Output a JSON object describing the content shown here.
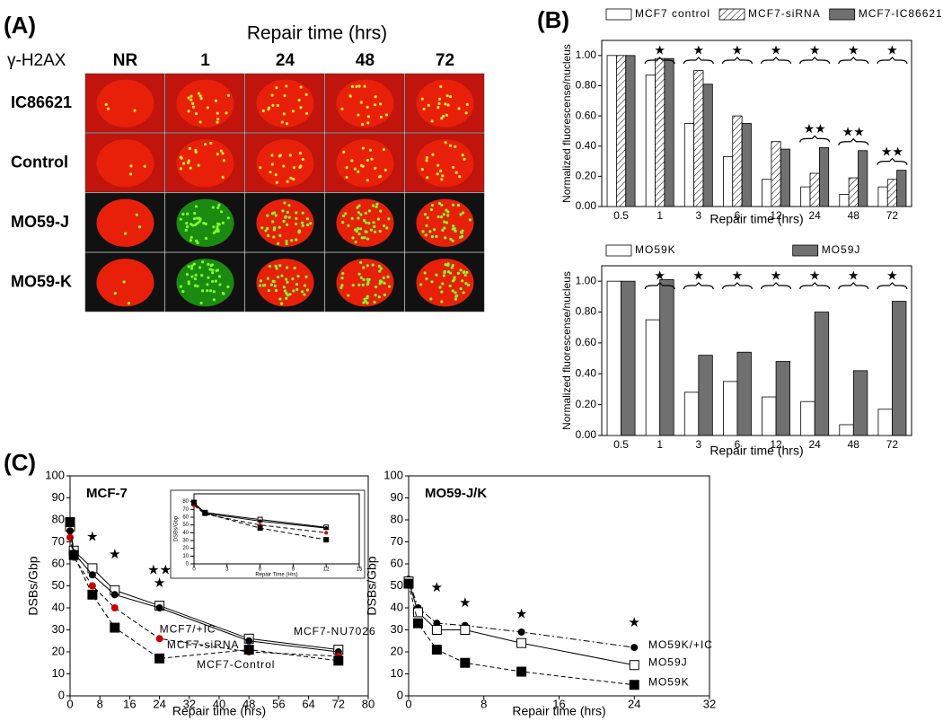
{
  "panel_a": {
    "label": "(A)",
    "title": "Repair time (hrs)",
    "row_header": "γ-H2AX",
    "columns": [
      "NR",
      "1",
      "24",
      "48",
      "72"
    ],
    "rows": [
      "IC86621",
      "Control",
      "MO59-J",
      "MO59-K"
    ]
  },
  "chart_data": [
    {
      "type": "bar",
      "panel_label": "(B)",
      "x_label": "Repair time (hrs)",
      "y_label": "Normalized fluorescense/nucleus",
      "categories": [
        "0.5",
        "1",
        "3",
        "6",
        "12",
        "24",
        "48",
        "72"
      ],
      "series": [
        {
          "name": "MCF7 control",
          "color": "#ffffff",
          "values": [
            1.0,
            0.87,
            0.55,
            0.33,
            0.18,
            0.13,
            0.08,
            0.13
          ]
        },
        {
          "name": "MCF7-siRNA",
          "color": "#ffffff",
          "fill_style": "hatch",
          "values": [
            1.0,
            0.98,
            0.9,
            0.6,
            0.43,
            0.22,
            0.19,
            0.18
          ]
        },
        {
          "name": "MCF7-IC86621",
          "color": "#707070",
          "values": [
            1.0,
            0.98,
            0.81,
            0.55,
            0.38,
            0.39,
            0.37,
            0.24
          ]
        }
      ],
      "ylim": [
        0,
        1.1
      ],
      "yticks": [
        {
          "value": 0,
          "label": "0.00"
        },
        {
          "value": 0.2,
          "label": "0.20"
        },
        {
          "value": 0.4,
          "label": "0.40"
        },
        {
          "value": 0.6,
          "label": "0.60"
        },
        {
          "value": 0.8,
          "label": "0.80"
        },
        {
          "value": 1.0,
          "label": "1.00"
        }
      ],
      "significance": [
        null,
        "★",
        "★",
        "★",
        "★",
        "★",
        "★",
        "★"
      ],
      "significance_low": [
        null,
        null,
        null,
        null,
        null,
        "★★",
        "★★",
        "★★"
      ]
    },
    {
      "type": "bar",
      "x_label": "Repair time (hrs)",
      "y_label": "Normalized fluorescense/nucleus",
      "categories": [
        "0.5",
        "1",
        "3",
        "6",
        "12",
        "24",
        "48",
        "72"
      ],
      "series": [
        {
          "name": "MO59K",
          "color": "#ffffff",
          "values": [
            1.0,
            0.75,
            0.28,
            0.35,
            0.25,
            0.22,
            0.07,
            0.17
          ]
        },
        {
          "name": "MO59J",
          "color": "#707070",
          "values": [
            1.0,
            1.01,
            0.52,
            0.54,
            0.48,
            0.8,
            0.42,
            0.87
          ]
        }
      ],
      "ylim": [
        0,
        1.1
      ],
      "yticks": [
        {
          "value": 0,
          "label": "0.00"
        },
        {
          "value": 0.2,
          "label": "0.20"
        },
        {
          "value": 0.4,
          "label": "0.40"
        },
        {
          "value": 0.6,
          "label": "0.60"
        },
        {
          "value": 0.8,
          "label": "0.80"
        },
        {
          "value": 1.0,
          "label": "1.00"
        }
      ],
      "significance": [
        null,
        "★",
        "★",
        "★",
        "★",
        "★",
        "★",
        "★"
      ]
    },
    {
      "type": "line",
      "panel_label": "(C)",
      "title": "MCF-7",
      "x_label": "Repair time (hrs)",
      "y_label": "DSBs/Gbp",
      "x": [
        0,
        1,
        6,
        12,
        24,
        48,
        72
      ],
      "series": [
        {
          "name": "MCF7-NU7026",
          "color": "#000000",
          "dash": "solid",
          "marker": "square-open",
          "values": [
            77,
            66,
            58,
            48,
            41,
            26,
            21
          ]
        },
        {
          "name": "MCF7/+IC",
          "color": "#000000",
          "dash": "solid",
          "marker": "circle",
          "values": [
            75,
            65,
            55,
            46,
            40,
            25,
            20
          ]
        },
        {
          "name": "MCF7-siRNA",
          "color": "#cc0000",
          "dash": "dashed",
          "marker": "circle",
          "values": [
            72,
            63,
            50,
            40,
            26,
            20,
            18
          ]
        },
        {
          "name": "MCF7-Control",
          "color": "#000000",
          "dash": "dashed",
          "marker": "square",
          "values": [
            79,
            64,
            46,
            31,
            17,
            21,
            16
          ]
        }
      ],
      "xlim": [
        0,
        80
      ],
      "xticks": [
        0,
        8,
        16,
        24,
        32,
        40,
        48,
        56,
        64,
        72,
        80
      ],
      "ylim": [
        0,
        100
      ],
      "yticks": [
        0,
        10,
        20,
        30,
        40,
        50,
        60,
        70,
        80,
        90,
        100
      ],
      "annotations": [
        {
          "text": "★",
          "x": 6,
          "y": 72
        },
        {
          "text": "★",
          "x": 12,
          "y": 64
        },
        {
          "text": "★★",
          "x": 24,
          "y": 57
        },
        {
          "text": "★",
          "x": 24,
          "y": 51
        }
      ]
    },
    {
      "type": "line",
      "x_label": "Repair Time (Hrs)",
      "y_label": "DSBs/Gbp",
      "x": [
        0,
        1,
        6,
        12
      ],
      "series": [
        {
          "name": "MCF7-NU7026",
          "color": "#000000",
          "dash": "solid",
          "marker": "square-open",
          "values": [
            78,
            66,
            57,
            47
          ]
        },
        {
          "name": "MCF7/+IC",
          "color": "#000000",
          "dash": "solid",
          "marker": "circle",
          "values": [
            77,
            65,
            55,
            46
          ]
        },
        {
          "name": "MCF7-siRNA",
          "color": "#cc0000",
          "dash": "dashed",
          "marker": "circle",
          "values": [
            75,
            64,
            50,
            40
          ]
        },
        {
          "name": "MCF7-Control",
          "color": "#000000",
          "dash": "dashed",
          "marker": "square",
          "values": [
            79,
            65,
            46,
            31
          ]
        }
      ],
      "xlim": [
        0,
        15
      ],
      "xticks": [
        0,
        3,
        6,
        9,
        12,
        15
      ],
      "ylim": [
        0,
        90
      ],
      "yticks": [
        0,
        10,
        20,
        30,
        40,
        50,
        60,
        70,
        80
      ]
    },
    {
      "type": "line",
      "title": "MO59-J/K",
      "x_label": "Repair time (hrs)",
      "y_label": "DSBs/Gbp",
      "x": [
        0,
        1,
        3,
        6,
        12,
        24
      ],
      "series": [
        {
          "name": "MO59K/+IC",
          "color": "#000000",
          "dash": "dashdot",
          "marker": "circle",
          "values": [
            53,
            40,
            33,
            32,
            29,
            22
          ]
        },
        {
          "name": "MO59J",
          "color": "#000000",
          "dash": "solid",
          "marker": "square-open",
          "values": [
            52,
            38,
            30,
            30,
            24,
            14
          ]
        },
        {
          "name": "MO59K",
          "color": "#000000",
          "dash": "dashed",
          "marker": "square",
          "values": [
            51,
            33,
            21,
            15,
            11,
            5
          ]
        }
      ],
      "xlim": [
        0,
        32
      ],
      "xticks": [
        0,
        8,
        16,
        24,
        32
      ],
      "ylim": [
        0,
        100
      ],
      "yticks": [
        0,
        10,
        20,
        30,
        40,
        50,
        60,
        70,
        80,
        90,
        100
      ],
      "annotations": [
        {
          "text": "★",
          "x": 3,
          "y": 49
        },
        {
          "text": "★",
          "x": 6,
          "y": 42
        },
        {
          "text": "★",
          "x": 12,
          "y": 37
        },
        {
          "text": "★",
          "x": 24,
          "y": 33
        }
      ]
    }
  ]
}
